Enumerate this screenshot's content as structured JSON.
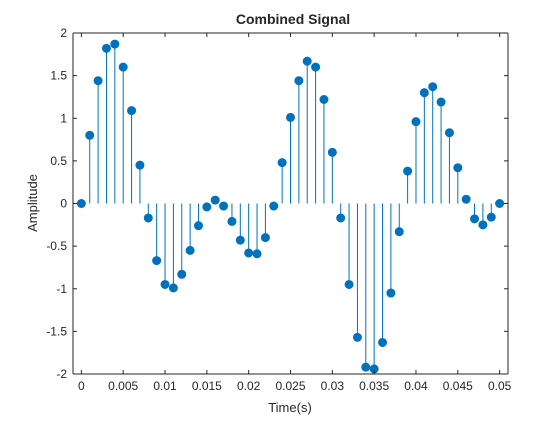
{
  "chart_data": {
    "type": "stem",
    "title": "Combined Signal",
    "xlabel": "Time(s)",
    "ylabel": "Amplitude",
    "xlim": [
      -0.001,
      0.051
    ],
    "ylim": [
      -2,
      2
    ],
    "xticks": [
      0,
      0.005,
      0.01,
      0.015,
      0.02,
      0.025,
      0.03,
      0.035,
      0.04,
      0.045,
      0.05
    ],
    "xtick_labels": [
      "0",
      "0.005",
      "0.01",
      "0.015",
      "0.02",
      "0.025",
      "0.03",
      "0.035",
      "0.04",
      "0.045",
      "0.05"
    ],
    "yticks": [
      -2,
      -1.5,
      -1,
      -0.5,
      0,
      0.5,
      1,
      1.5,
      2
    ],
    "ytick_labels": [
      "-2",
      "-1.5",
      "-1",
      "-0.5",
      "0",
      "0.5",
      "1",
      "1.5",
      "2"
    ],
    "grid": false,
    "color": "#0072BD",
    "x": [
      0,
      0.001,
      0.002,
      0.003,
      0.004,
      0.005,
      0.006,
      0.007,
      0.008,
      0.009,
      0.01,
      0.011,
      0.012,
      0.013,
      0.014,
      0.015,
      0.016,
      0.017,
      0.018,
      0.019,
      0.02,
      0.021,
      0.022,
      0.023,
      0.024,
      0.025,
      0.026,
      0.027,
      0.028,
      0.029,
      0.03,
      0.031,
      0.032,
      0.033,
      0.034,
      0.035,
      0.036,
      0.037,
      0.038,
      0.039,
      0.04,
      0.041,
      0.042,
      0.043,
      0.044,
      0.045,
      0.046,
      0.047,
      0.048,
      0.049,
      0.05
    ],
    "y": [
      0,
      0.8,
      1.44,
      1.82,
      1.87,
      1.6,
      1.09,
      0.45,
      -0.17,
      -0.67,
      -0.95,
      -0.99,
      -0.83,
      -0.55,
      -0.26,
      -0.04,
      0.04,
      -0.03,
      -0.21,
      -0.43,
      -0.58,
      -0.59,
      -0.4,
      -0.03,
      0.48,
      1.01,
      1.44,
      1.67,
      1.6,
      1.22,
      0.6,
      -0.17,
      -0.95,
      -1.57,
      -1.92,
      -1.94,
      -1.63,
      -1.05,
      -0.33,
      0.38,
      0.96,
      1.3,
      1.37,
      1.19,
      0.83,
      0.42,
      0.05,
      -0.18,
      -0.25,
      -0.16,
      0
    ]
  }
}
